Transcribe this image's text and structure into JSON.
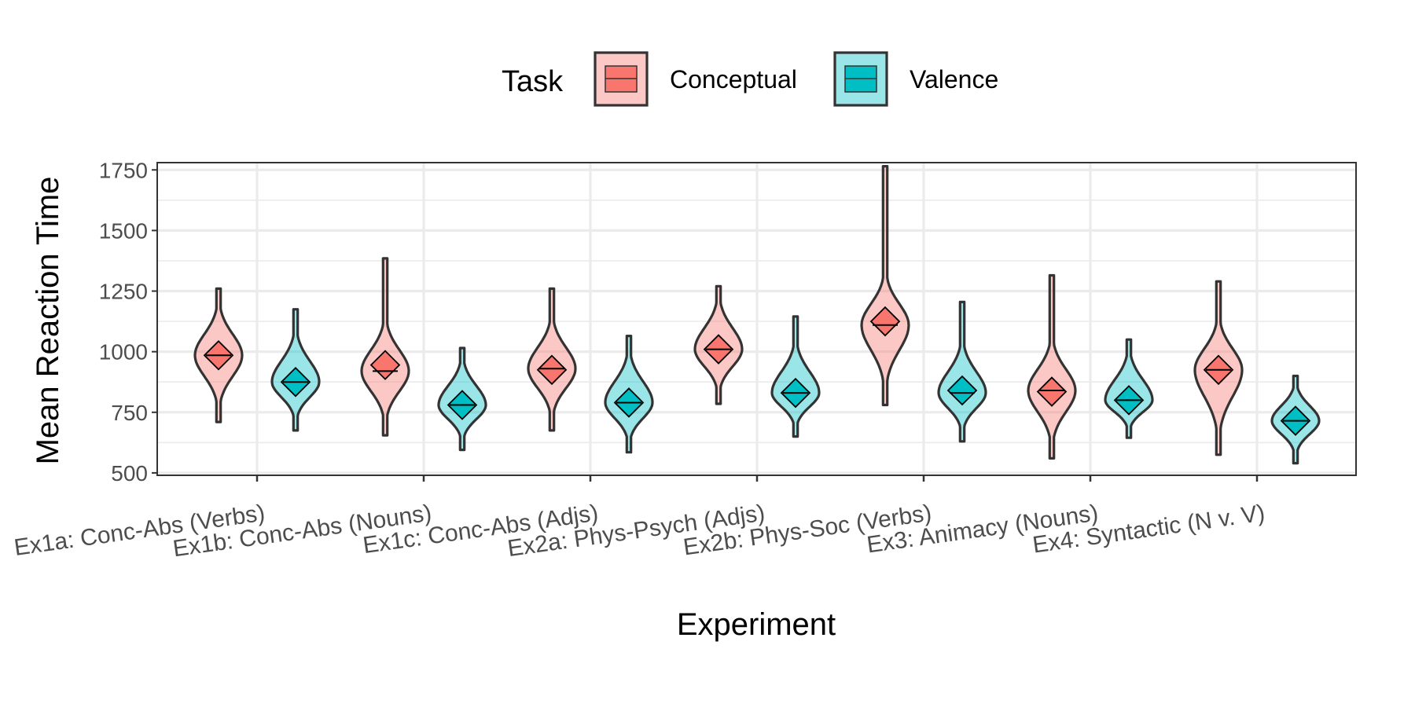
{
  "chart_data": {
    "type": "violin",
    "xlabel": "Experiment",
    "ylabel": "Mean Reaction Time",
    "ylim": [
      490,
      1780
    ],
    "yticks": [
      500,
      750,
      1000,
      1250,
      1500,
      1750
    ],
    "grid": true,
    "legend": {
      "title": "Task",
      "placement": "top",
      "entries": [
        "Conceptual",
        "Valence"
      ]
    },
    "colors": {
      "Conceptual": "#F8766D",
      "Valence": "#00BFC4",
      "outline": "#333333",
      "grid": "#EBEBEB",
      "panel_border": "#333333"
    },
    "categories": [
      "Ex1a: Conc-Abs (Verbs)",
      "Ex1b: Conc-Abs (Nouns)",
      "Ex1c: Conc-Abs (Adjs)",
      "Ex2a: Phys-Psych (Adjs)",
      "Ex2b: Phys-Soc (Verbs)",
      "Ex3: Animacy (Nouns)",
      "Ex4: Syntactic (N v. V)"
    ],
    "series": [
      {
        "name": "Conceptual",
        "means": [
          985,
          945,
          925,
          1010,
          1125,
          835,
          925
        ],
        "medians": [
          985,
          920,
          930,
          1010,
          1110,
          840,
          925
        ],
        "mins": [
          710,
          655,
          675,
          785,
          780,
          560,
          575
        ],
        "maxs": [
          1260,
          1385,
          1260,
          1270,
          1765,
          1315,
          1290
        ]
      },
      {
        "name": "Valence",
        "means": [
          875,
          780,
          790,
          830,
          840,
          800,
          715
        ],
        "medians": [
          875,
          780,
          790,
          830,
          830,
          800,
          715
        ],
        "mins": [
          675,
          595,
          585,
          650,
          630,
          645,
          540
        ],
        "maxs": [
          1175,
          1015,
          1065,
          1145,
          1205,
          1050,
          900
        ]
      }
    ]
  }
}
